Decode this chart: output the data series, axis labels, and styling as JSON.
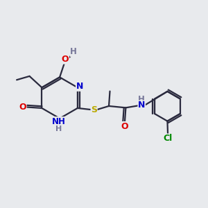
{
  "background_color": "#e8eaed",
  "bond_color": "#2a2a3e",
  "atom_colors": {
    "O": "#dd0000",
    "N": "#0000cc",
    "S": "#bbaa00",
    "Cl": "#008800",
    "H": "#777799",
    "C": "#2a2a3e"
  },
  "figsize": [
    3.0,
    3.0
  ],
  "dpi": 100
}
